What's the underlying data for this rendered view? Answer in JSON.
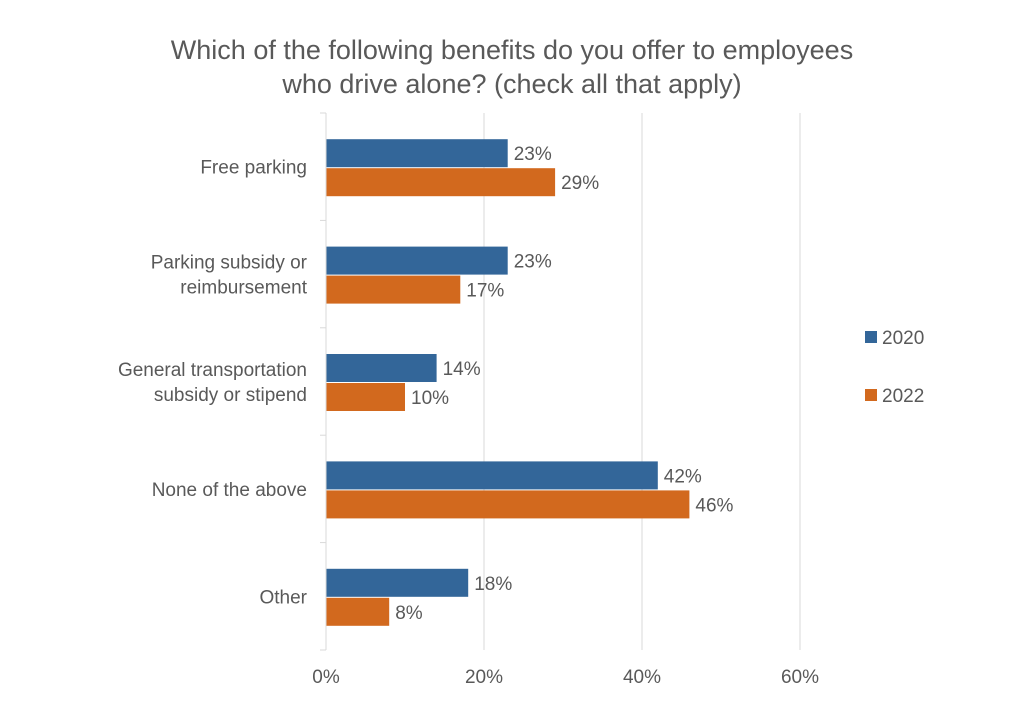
{
  "chart_data": {
    "type": "bar",
    "orientation": "horizontal",
    "title_lines": [
      "Which of the following benefits do you offer to employees",
      "who drive alone? (check all that apply)"
    ],
    "categories": [
      [
        "Free parking"
      ],
      [
        "Parking subsidy or",
        "reimbursement"
      ],
      [
        "General  transportation",
        "subsidy or stipend"
      ],
      [
        "None of the above"
      ],
      [
        "Other"
      ]
    ],
    "series": [
      {
        "name": "2020",
        "color": "#336699",
        "values": [
          23,
          23,
          14,
          42,
          18
        ],
        "labels": [
          "23%",
          "23%",
          "14%",
          "42%",
          "18%"
        ]
      },
      {
        "name": "2022",
        "color": "#D2691E",
        "values": [
          29,
          17,
          10,
          46,
          8
        ],
        "labels": [
          "29%",
          "17%",
          "10%",
          "46%",
          "8%"
        ]
      }
    ],
    "xlim": [
      0,
      60
    ],
    "x_ticks": [
      0,
      20,
      40,
      60
    ],
    "x_tick_labels": [
      "0%",
      "20%",
      "40%",
      "60%"
    ],
    "grid": true,
    "legend_position": "right"
  }
}
